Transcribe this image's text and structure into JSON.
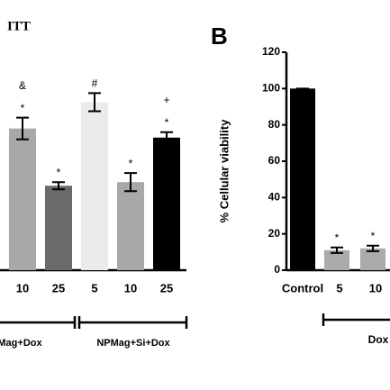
{
  "chart_data": [
    {
      "type": "bar",
      "title": "ITT",
      "categories": [
        "10",
        "25",
        "5",
        "10",
        "25"
      ],
      "values": [
        78,
        46.5,
        92.5,
        48.5,
        73
      ],
      "errors": [
        6,
        2,
        5,
        5,
        3
      ],
      "colors": [
        "#a8a8a8",
        "#6a6a6a",
        "#ebebeb",
        "#a8a8a8",
        "#000000"
      ],
      "annotations": [
        [
          "&",
          "*"
        ],
        [
          "*"
        ],
        [
          "#"
        ],
        [
          "*"
        ],
        [
          "+",
          "*"
        ]
      ],
      "groups": [
        "Mag+Dox",
        "NPMag+Si+Dox"
      ],
      "ylim": [
        0,
        120
      ]
    },
    {
      "type": "bar",
      "panel": "B",
      "ylabel": "% Cellular viability",
      "categories": [
        "Control",
        "5",
        "10"
      ],
      "values": [
        100,
        11,
        12
      ],
      "errors": [
        0,
        1.5,
        1.5
      ],
      "colors": [
        "#000000",
        "#aaaaaa",
        "#aaaaaa"
      ],
      "annotations": [
        [],
        [
          "*"
        ],
        [
          "*"
        ]
      ],
      "groups": [
        "Dox"
      ],
      "ylim": [
        0,
        120
      ],
      "yticks": [
        0,
        20,
        40,
        60,
        80,
        100,
        120
      ]
    }
  ]
}
